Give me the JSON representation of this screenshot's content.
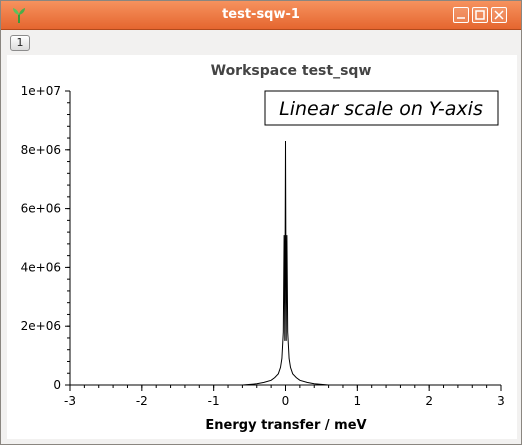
{
  "window": {
    "title": "test-sqw-1",
    "layer_button_label": "1",
    "titlebar_color": "#ec7540"
  },
  "chart_data": {
    "type": "line",
    "title": "Workspace test_sqw",
    "xlabel": "Energy transfer / meV",
    "ylabel": "",
    "legend_text": "Linear scale on Y-axis",
    "xlim": [
      -3,
      3
    ],
    "ylim": [
      0,
      10000000
    ],
    "xticks": [
      -3,
      -2,
      -1,
      0,
      1,
      2,
      3
    ],
    "xtick_labels": [
      "-3",
      "-2",
      "-1",
      "0",
      "1",
      "2",
      "3"
    ],
    "yticks": [
      0,
      2000000,
      4000000,
      6000000,
      8000000,
      10000000
    ],
    "ytick_labels": [
      "0",
      "2e+06",
      "4e+06",
      "6e+06",
      "8e+06",
      "1e+07"
    ],
    "line_color": "#000000",
    "series": [
      {
        "x": [
          -3.0,
          -2.0,
          -1.0,
          -0.6,
          -0.4,
          -0.3,
          -0.2,
          -0.15,
          -0.1,
          -0.07,
          -0.05,
          -0.03,
          -0.02,
          -0.01,
          0.0,
          0.01,
          0.02,
          0.03,
          0.05,
          0.07,
          0.1,
          0.15,
          0.2,
          0.3,
          0.4,
          0.6,
          1.0,
          2.0,
          2.05,
          3.0
        ],
        "y": [
          0,
          0,
          0,
          0,
          40000,
          90000,
          160000,
          250000,
          380000,
          600000,
          900000,
          1800000,
          5100000,
          1500000,
          8300000,
          1500000,
          5100000,
          1800000,
          900000,
          600000,
          380000,
          250000,
          160000,
          90000,
          40000,
          0,
          0,
          0,
          0,
          0
        ]
      }
    ]
  }
}
